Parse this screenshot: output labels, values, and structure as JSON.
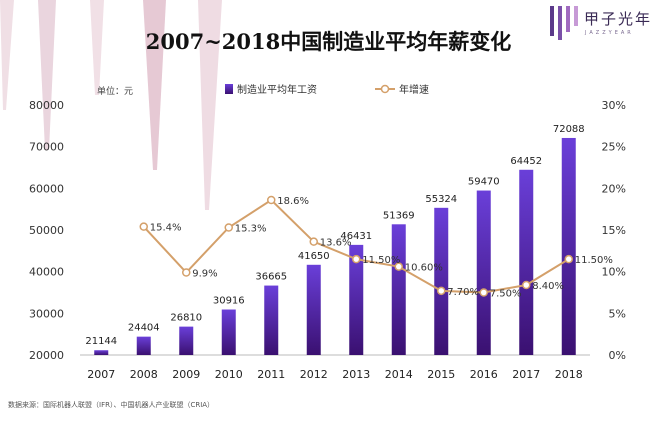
{
  "brand": {
    "name": "甲子光年",
    "sub": "JAZZYEAR"
  },
  "source_note": "数据来源：国际机器人联盟（IFR）、中国机器人产业联盟（CRIA）",
  "colors": {
    "bar_top": "#6a3fd9",
    "bar_bottom": "#3a1070",
    "line": "#d4a06a",
    "marker_fill": "#ffffff",
    "deco": "#d9b8c6"
  },
  "chart_data": {
    "type": "bar",
    "title": "2007~2018中国制造业平均年薪变化",
    "unit_label": "单位：元",
    "categories": [
      "2007",
      "2008",
      "2009",
      "2010",
      "2011",
      "2012",
      "2013",
      "2014",
      "2015",
      "2016",
      "2017",
      "2018"
    ],
    "series": [
      {
        "name": "制造业平均年工资",
        "type": "bar",
        "axis": "left",
        "values": [
          21144,
          24404,
          26810,
          30916,
          36665,
          41650,
          46431,
          51369,
          55324,
          59470,
          64452,
          72088
        ],
        "labels": [
          "21144",
          "24404",
          "26810",
          "30916",
          "36665",
          "41650",
          "46431",
          "51369",
          "55324",
          "59470",
          "64452",
          "72088"
        ]
      },
      {
        "name": "年增速",
        "type": "line",
        "axis": "right",
        "values": [
          null,
          15.4,
          9.9,
          15.3,
          18.6,
          13.6,
          11.5,
          10.6,
          7.7,
          7.5,
          8.4,
          11.5
        ],
        "labels": [
          "",
          "15.4%",
          "9.9%",
          "15.3%",
          "18.6%",
          "13.6%",
          "11.50%",
          "10.60%",
          "7.70%",
          "7.50%",
          "8.40%",
          "11.50%"
        ]
      }
    ],
    "y_left": {
      "min": 20000,
      "max": 80000,
      "ticks": [
        "20000",
        "30000",
        "40000",
        "50000",
        "60000",
        "70000",
        "80000"
      ]
    },
    "y_right": {
      "min": 0,
      "max": 30,
      "ticks": [
        "0%",
        "5%",
        "10%",
        "15%",
        "20%",
        "25%",
        "30%"
      ]
    },
    "grid": false,
    "legend_position": "top"
  }
}
